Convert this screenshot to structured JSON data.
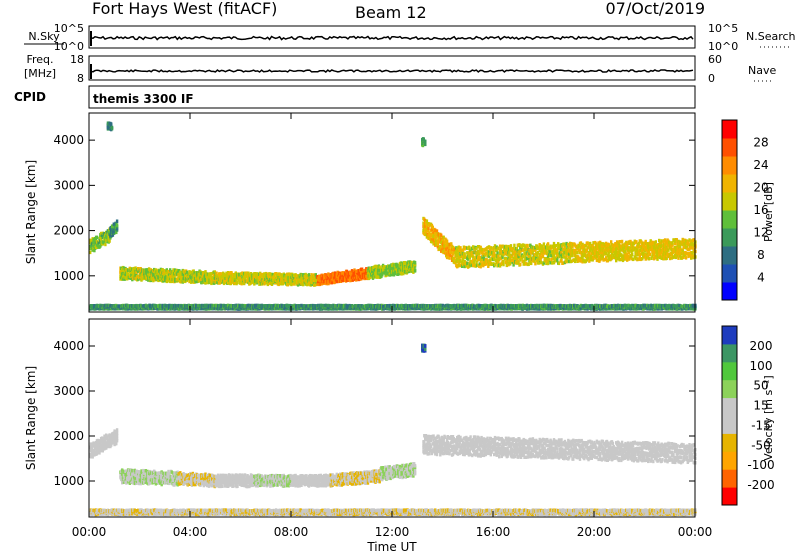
{
  "header": {
    "station": "Fort Hays West (fitACF)",
    "beam": "Beam 12",
    "date": "07/Oct/2019"
  },
  "nsky_panel": {
    "left_label": "N.Sky",
    "left_top_tick": "10^5",
    "left_bottom_tick": "10^0",
    "right_top_tick": "10^5",
    "right_bottom_tick": "10^0",
    "right_label": "N.Search"
  },
  "freq_panel": {
    "left_label": "Freq.",
    "left_unit": "[MHz]",
    "left_top_tick": "18",
    "left_bottom_tick": "8",
    "right_top_tick": "60",
    "right_bottom_tick": "0",
    "right_label": "Nave"
  },
  "cpid_panel": {
    "label": "CPID",
    "program": "themis 3300 IF"
  },
  "time_axis": {
    "label": "Time UT",
    "ticks": [
      "00:00",
      "04:00",
      "08:00",
      "12:00",
      "16:00",
      "20:00",
      "00:00"
    ]
  },
  "colors": {
    "power_scale": [
      "#0000ff",
      "#1e50b4",
      "#2e6e82",
      "#3b9a5a",
      "#5fbf3a",
      "#c8c800",
      "#f0b400",
      "#ff8c00",
      "#ff5000",
      "#ff0000"
    ],
    "velocity_scale": [
      "#ff0000",
      "#ff6400",
      "#ffa500",
      "#e6b400",
      "#c8c8c8",
      "#c8c8c8",
      "#8cd25a",
      "#50c83c",
      "#3c9664",
      "#1e3cbe"
    ]
  },
  "chart_data": [
    {
      "type": "heatmap",
      "name": "power",
      "ylabel": "Slant Range [km]",
      "yticks": [
        "1000",
        "2000",
        "3000",
        "4000"
      ],
      "ylim": [
        200,
        4600
      ],
      "xlim": [
        0,
        24
      ],
      "colorbar": {
        "label": "Power [dB]",
        "ticks": [
          "4",
          "8",
          "12",
          "16",
          "20",
          "24",
          "28"
        ],
        "range": [
          0,
          30
        ]
      },
      "bands": [
        {
          "x": [
            0.0,
            0.8
          ],
          "y_center": [
            1650,
            1900
          ],
          "thickness": 300,
          "value": 14
        },
        {
          "x": [
            0.8,
            1.1
          ],
          "y_center": [
            1950,
            2100
          ],
          "thickness": 250,
          "value": 10
        },
        {
          "x": [
            1.2,
            5.0
          ],
          "y_center": [
            1050,
            950
          ],
          "thickness": 260,
          "value": 16
        },
        {
          "x": [
            5.0,
            9.0
          ],
          "y_center": [
            950,
            900
          ],
          "thickness": 240,
          "value": 17
        },
        {
          "x": [
            9.0,
            11.0
          ],
          "y_center": [
            900,
            1050
          ],
          "thickness": 220,
          "value": 24
        },
        {
          "x": [
            11.0,
            12.9
          ],
          "y_center": [
            1050,
            1200
          ],
          "thickness": 260,
          "value": 15
        },
        {
          "x": [
            13.2,
            14.5
          ],
          "y_center": [
            2100,
            1400
          ],
          "thickness": 400,
          "value": 20
        },
        {
          "x": [
            14.5,
            19.0
          ],
          "y_center": [
            1400,
            1500
          ],
          "thickness": 450,
          "value": 17
        },
        {
          "x": [
            19.0,
            24.0
          ],
          "y_center": [
            1500,
            1600
          ],
          "thickness": 420,
          "value": 18
        },
        {
          "x": [
            0.0,
            24.0
          ],
          "y_center": [
            300,
            300
          ],
          "thickness": 80,
          "value": 10
        },
        {
          "x": [
            13.15,
            13.3
          ],
          "y_center": [
            3950,
            3950
          ],
          "thickness": 150,
          "value": 12
        },
        {
          "x": [
            0.7,
            0.9
          ],
          "y_center": [
            4300,
            4300
          ],
          "thickness": 150,
          "value": 9
        }
      ]
    },
    {
      "type": "heatmap",
      "name": "velocity",
      "ylabel": "Slant Range [km]",
      "yticks": [
        "1000",
        "2000",
        "3000",
        "4000"
      ],
      "ylim": [
        200,
        4600
      ],
      "xlim": [
        0,
        24
      ],
      "colorbar": {
        "label": "Velocity [m s⁻¹]",
        "ticks": [
          "200",
          "100",
          "50",
          "15",
          "-15",
          "-50",
          "-100",
          "-200"
        ],
        "range": [
          -250,
          250
        ]
      },
      "bands": [
        {
          "x": [
            0.0,
            1.1
          ],
          "y_center": [
            1650,
            2000
          ],
          "thickness": 320,
          "value": 0
        },
        {
          "x": [
            1.2,
            3.5
          ],
          "y_center": [
            1100,
            1050
          ],
          "thickness": 300,
          "value": 40
        },
        {
          "x": [
            3.5,
            5.0
          ],
          "y_center": [
            1050,
            1000
          ],
          "thickness": 260,
          "value": -40
        },
        {
          "x": [
            5.0,
            6.5
          ],
          "y_center": [
            1000,
            1000
          ],
          "thickness": 260,
          "value": 0
        },
        {
          "x": [
            6.5,
            8.0
          ],
          "y_center": [
            1000,
            1000
          ],
          "thickness": 240,
          "value": 40
        },
        {
          "x": [
            8.0,
            9.5
          ],
          "y_center": [
            1000,
            1000
          ],
          "thickness": 240,
          "value": 0
        },
        {
          "x": [
            9.5,
            11.5
          ],
          "y_center": [
            1000,
            1100
          ],
          "thickness": 260,
          "value": -40
        },
        {
          "x": [
            11.5,
            12.9
          ],
          "y_center": [
            1150,
            1250
          ],
          "thickness": 280,
          "value": 40
        },
        {
          "x": [
            13.2,
            24.0
          ],
          "y_center": [
            1800,
            1600
          ],
          "thickness": 420,
          "value": 0
        },
        {
          "x": [
            0.0,
            24.0
          ],
          "y_center": [
            300,
            300
          ],
          "thickness": 100,
          "value": -30
        },
        {
          "x": [
            13.15,
            13.3
          ],
          "y_center": [
            3950,
            3950
          ],
          "thickness": 150,
          "value": 220
        }
      ]
    }
  ]
}
